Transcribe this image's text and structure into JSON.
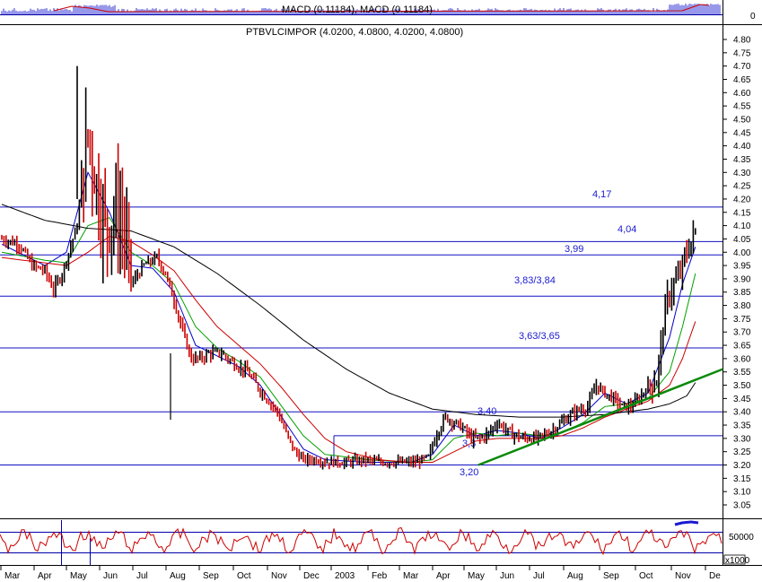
{
  "chart_data": {
    "type": "line",
    "panels": {
      "macd": {
        "label": "MACD (0.11184), MACD (0.11184)",
        "ytick": "0"
      },
      "price": {
        "label": "PTBVLCIMPOR (4.0200, 4.0800, 4.0200, 4.0800)",
        "ylim": [
          3.0,
          4.85
        ],
        "yticks": [
          "3.05",
          "3.10",
          "3.15",
          "3.20",
          "3.25",
          "3.30",
          "3.35",
          "3.40",
          "3.45",
          "3.50",
          "3.55",
          "3.60",
          "3.65",
          "3.70",
          "3.75",
          "3.80",
          "3.85",
          "3.90",
          "3.95",
          "4.00",
          "4.05",
          "4.10",
          "4.15",
          "4.20",
          "4.25",
          "4.30",
          "4.35",
          "4.40",
          "4.45",
          "4.50",
          "4.55",
          "4.60",
          "4.65",
          "4.70",
          "4.75",
          "4.80"
        ],
        "levels": [
          {
            "value": 4.17,
            "label": "4,17"
          },
          {
            "value": 4.04,
            "label": "4,04"
          },
          {
            "value": 3.99,
            "label": "3,99"
          },
          {
            "value": 3.835,
            "label": "3,83/3,84"
          },
          {
            "value": 3.64,
            "label": "3,63/3,65"
          },
          {
            "value": 3.4,
            "label": "3,40"
          },
          {
            "value": 3.31,
            "label": "3,3"
          },
          {
            "value": 3.2,
            "label": "3,20"
          }
        ],
        "trendline": {
          "start": [
            360,
            3.2
          ],
          "end": [
            485,
            3.56
          ]
        }
      },
      "volume": {
        "ytick": "50000",
        "unit": "x1000"
      }
    },
    "xaxis": [
      "Mar",
      "Apr",
      "May",
      "Jun",
      "Jul",
      "Aug",
      "Sep",
      "Oct",
      "Nov",
      "Dec",
      "2003",
      "Feb",
      "Mar",
      "Apr",
      "May",
      "Jun",
      "Jul",
      "Aug",
      "Sep",
      "Oct",
      "Nov",
      "De"
    ],
    "closes": [
      [
        0,
        4.05
      ],
      [
        8,
        4.03
      ],
      [
        14,
        3.95
      ],
      [
        20,
        3.93
      ],
      [
        24,
        3.86
      ],
      [
        28,
        3.92
      ],
      [
        35,
        4.1
      ],
      [
        40,
        4.45
      ],
      [
        44,
        4.25
      ],
      [
        48,
        4.1
      ],
      [
        52,
        4.15
      ],
      [
        56,
        4.12
      ],
      [
        60,
        3.88
      ],
      [
        66,
        3.95
      ],
      [
        72,
        3.98
      ],
      [
        76,
        3.92
      ],
      [
        80,
        3.82
      ],
      [
        84,
        3.7
      ],
      [
        88,
        3.6
      ],
      [
        92,
        3.6
      ],
      [
        96,
        3.62
      ],
      [
        102,
        3.62
      ],
      [
        108,
        3.58
      ],
      [
        114,
        3.55
      ],
      [
        120,
        3.48
      ],
      [
        124,
        3.44
      ],
      [
        128,
        3.4
      ],
      [
        132,
        3.32
      ],
      [
        136,
        3.25
      ],
      [
        140,
        3.22
      ],
      [
        146,
        3.22
      ],
      [
        152,
        3.21
      ],
      [
        160,
        3.21
      ],
      [
        168,
        3.22
      ],
      [
        176,
        3.21
      ],
      [
        184,
        3.21
      ],
      [
        192,
        3.21
      ],
      [
        198,
        3.23
      ],
      [
        202,
        3.32
      ],
      [
        206,
        3.38
      ],
      [
        210,
        3.36
      ],
      [
        214,
        3.34
      ],
      [
        218,
        3.3
      ],
      [
        222,
        3.3
      ],
      [
        226,
        3.32
      ],
      [
        230,
        3.36
      ],
      [
        236,
        3.32
      ],
      [
        242,
        3.3
      ],
      [
        248,
        3.3
      ],
      [
        254,
        3.32
      ],
      [
        260,
        3.36
      ],
      [
        266,
        3.4
      ],
      [
        272,
        3.42
      ],
      [
        276,
        3.5
      ],
      [
        280,
        3.47
      ],
      [
        284,
        3.45
      ],
      [
        288,
        3.42
      ],
      [
        292,
        3.42
      ],
      [
        296,
        3.45
      ],
      [
        300,
        3.5
      ],
      [
        304,
        3.52
      ],
      [
        306,
        3.65
      ],
      [
        308,
        3.78
      ],
      [
        310,
        3.85
      ],
      [
        312,
        3.88
      ],
      [
        314,
        3.9
      ],
      [
        316,
        3.95
      ],
      [
        318,
        4.0
      ],
      [
        320,
        4.04
      ],
      [
        322,
        4.08
      ]
    ],
    "moving_averages": [
      {
        "color": "#0000cc",
        "values": [
          [
            0,
            4.03
          ],
          [
            20,
            3.95
          ],
          [
            30,
            4.0
          ],
          [
            40,
            4.3
          ],
          [
            50,
            4.15
          ],
          [
            60,
            3.95
          ],
          [
            70,
            3.94
          ],
          [
            80,
            3.85
          ],
          [
            90,
            3.65
          ],
          [
            100,
            3.61
          ],
          [
            110,
            3.57
          ],
          [
            120,
            3.5
          ],
          [
            130,
            3.38
          ],
          [
            140,
            3.26
          ],
          [
            150,
            3.22
          ],
          [
            170,
            3.21
          ],
          [
            190,
            3.21
          ],
          [
            200,
            3.24
          ],
          [
            210,
            3.35
          ],
          [
            220,
            3.31
          ],
          [
            230,
            3.33
          ],
          [
            240,
            3.32
          ],
          [
            250,
            3.3
          ],
          [
            260,
            3.34
          ],
          [
            270,
            3.39
          ],
          [
            280,
            3.47
          ],
          [
            290,
            3.43
          ],
          [
            300,
            3.47
          ],
          [
            310,
            3.68
          ],
          [
            316,
            3.88
          ],
          [
            322,
            4.02
          ]
        ]
      },
      {
        "color": "#00a000",
        "values": [
          [
            0,
            4.0
          ],
          [
            20,
            3.97
          ],
          [
            30,
            3.96
          ],
          [
            40,
            4.1
          ],
          [
            50,
            4.13
          ],
          [
            60,
            4.0
          ],
          [
            70,
            3.95
          ],
          [
            80,
            3.88
          ],
          [
            90,
            3.72
          ],
          [
            100,
            3.64
          ],
          [
            110,
            3.59
          ],
          [
            120,
            3.53
          ],
          [
            130,
            3.42
          ],
          [
            140,
            3.31
          ],
          [
            150,
            3.24
          ],
          [
            170,
            3.22
          ],
          [
            190,
            3.21
          ],
          [
            200,
            3.22
          ],
          [
            210,
            3.3
          ],
          [
            220,
            3.32
          ],
          [
            230,
            3.31
          ],
          [
            240,
            3.32
          ],
          [
            250,
            3.31
          ],
          [
            260,
            3.32
          ],
          [
            270,
            3.36
          ],
          [
            280,
            3.42
          ],
          [
            290,
            3.43
          ],
          [
            300,
            3.45
          ],
          [
            310,
            3.55
          ],
          [
            316,
            3.72
          ],
          [
            322,
            3.92
          ]
        ]
      },
      {
        "color": "#cc0000",
        "values": [
          [
            0,
            3.98
          ],
          [
            20,
            3.96
          ],
          [
            30,
            3.95
          ],
          [
            40,
            4.0
          ],
          [
            50,
            4.06
          ],
          [
            60,
            4.04
          ],
          [
            70,
            3.99
          ],
          [
            80,
            3.93
          ],
          [
            90,
            3.82
          ],
          [
            100,
            3.72
          ],
          [
            110,
            3.65
          ],
          [
            120,
            3.58
          ],
          [
            130,
            3.49
          ],
          [
            140,
            3.39
          ],
          [
            150,
            3.3
          ],
          [
            160,
            3.25
          ],
          [
            175,
            3.22
          ],
          [
            190,
            3.21
          ],
          [
            200,
            3.21
          ],
          [
            210,
            3.25
          ],
          [
            220,
            3.29
          ],
          [
            230,
            3.3
          ],
          [
            240,
            3.3
          ],
          [
            250,
            3.3
          ],
          [
            260,
            3.31
          ],
          [
            270,
            3.34
          ],
          [
            280,
            3.38
          ],
          [
            290,
            3.41
          ],
          [
            300,
            3.44
          ],
          [
            310,
            3.5
          ],
          [
            316,
            3.6
          ],
          [
            322,
            3.74
          ]
        ]
      },
      {
        "color": "#000000",
        "values": [
          [
            0,
            4.18
          ],
          [
            20,
            4.12
          ],
          [
            40,
            4.09
          ],
          [
            60,
            4.08
          ],
          [
            80,
            4.02
          ],
          [
            100,
            3.92
          ],
          [
            120,
            3.8
          ],
          [
            140,
            3.67
          ],
          [
            160,
            3.56
          ],
          [
            180,
            3.47
          ],
          [
            200,
            3.41
          ],
          [
            220,
            3.39
          ],
          [
            240,
            3.38
          ],
          [
            260,
            3.38
          ],
          [
            280,
            3.39
          ],
          [
            300,
            3.41
          ],
          [
            310,
            3.43
          ],
          [
            318,
            3.46
          ],
          [
            322,
            3.51
          ]
        ]
      }
    ]
  }
}
